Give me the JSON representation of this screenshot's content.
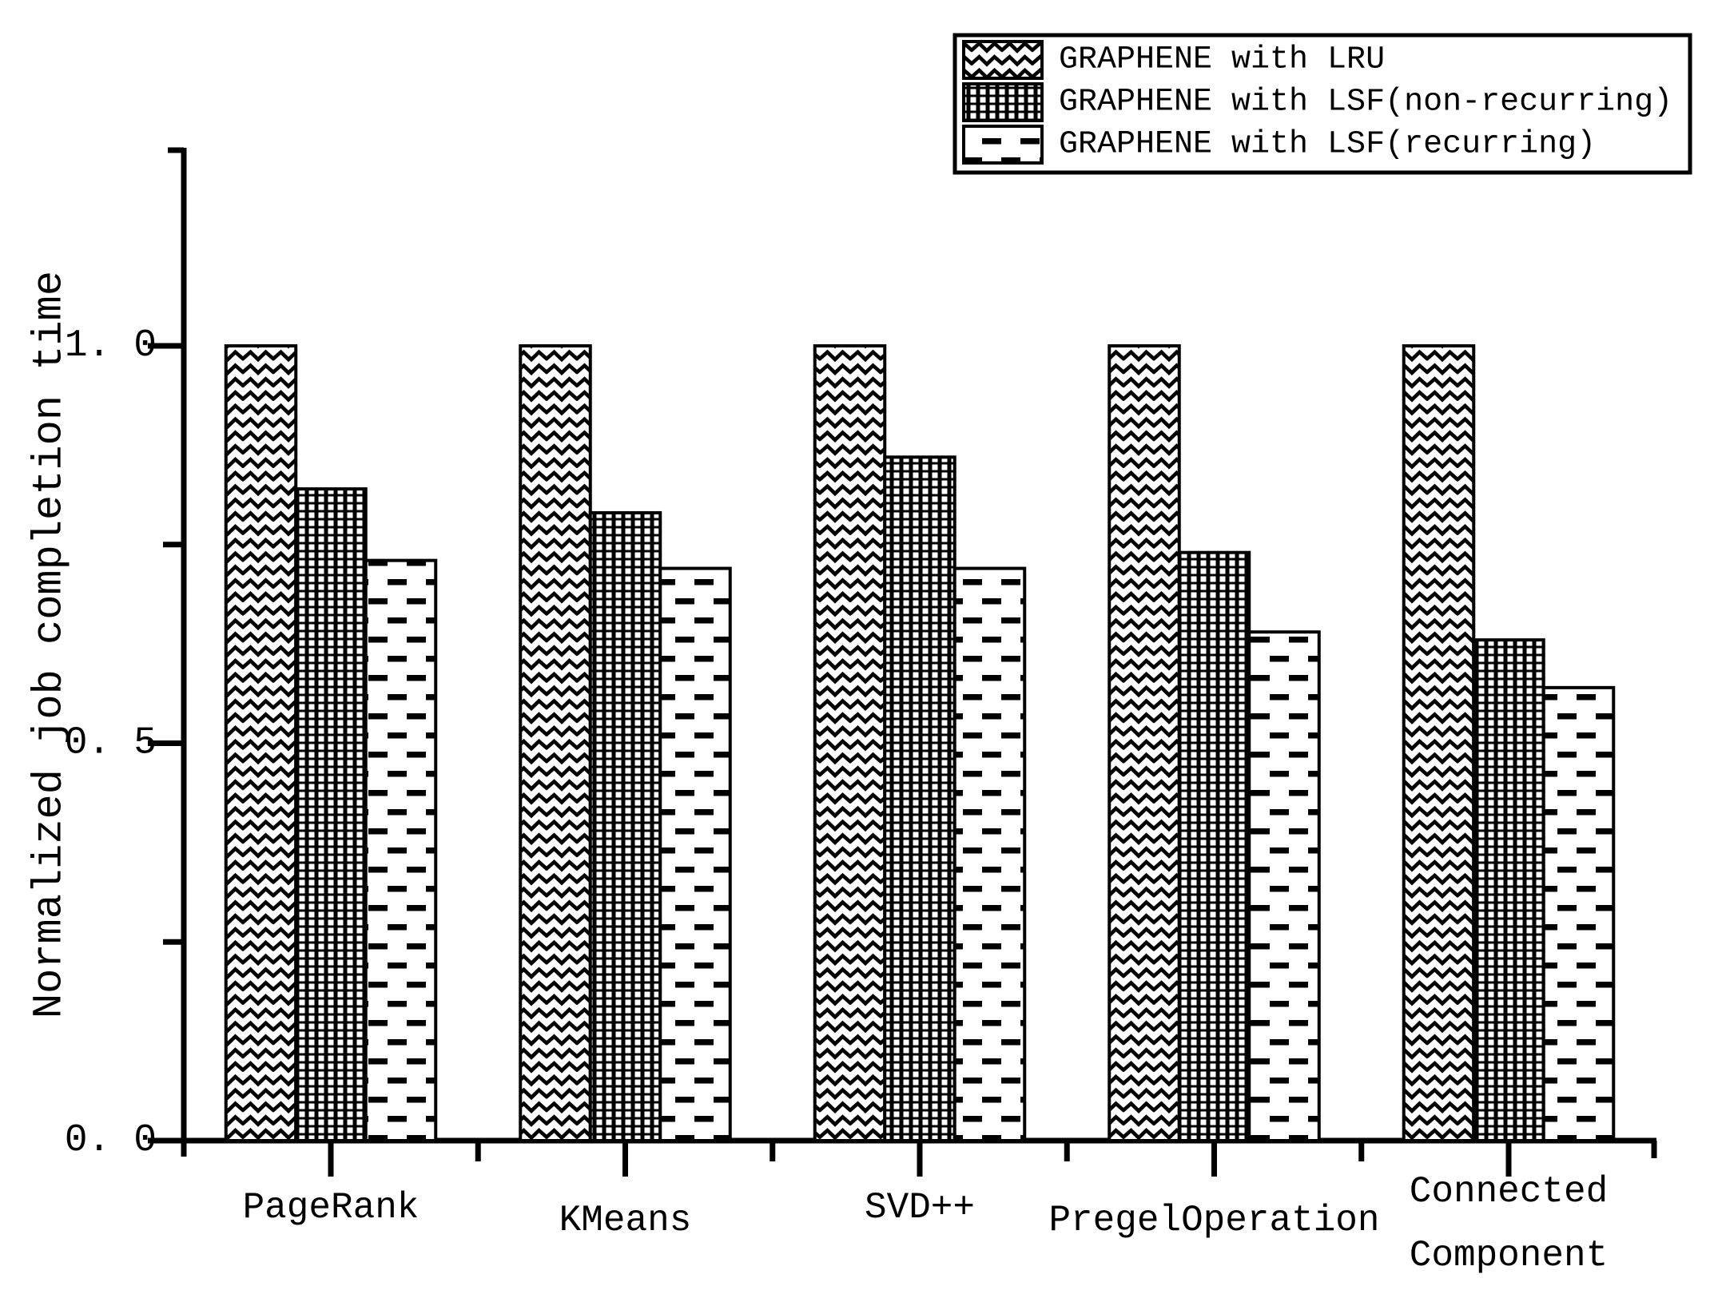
{
  "figure": {
    "background": "#ffffff",
    "ink": "#000000"
  },
  "chart_data": {
    "type": "bar",
    "title": "",
    "xlabel": "",
    "ylabel": "Normalized job completion time",
    "categories": [
      "PageRank",
      "KMeans",
      "SVD++",
      "PregelOperation",
      "Connected\nComponent"
    ],
    "series": [
      {
        "name": "GRAPHENE with LRU",
        "pattern": "wave-hatch",
        "values": [
          1.0,
          1.0,
          1.0,
          1.0,
          1.0
        ]
      },
      {
        "name": "GRAPHENE with LSF(non-recurring)",
        "pattern": "checker-dots",
        "values": [
          0.82,
          0.79,
          0.86,
          0.74,
          0.63
        ]
      },
      {
        "name": "GRAPHENE with LSF(recurring)",
        "pattern": "brick-dashes",
        "values": [
          0.73,
          0.72,
          0.72,
          0.64,
          0.57
        ]
      }
    ],
    "ylim": [
      0,
      1.25
    ],
    "yticks_major": {
      "values": [
        0.0,
        0.5,
        1.0
      ],
      "labels": [
        "0. 0",
        "0. 5",
        "1. 0"
      ]
    },
    "yticks_minor": [
      0.25,
      0.75
    ],
    "grid": false,
    "legend_position": "top-right"
  }
}
